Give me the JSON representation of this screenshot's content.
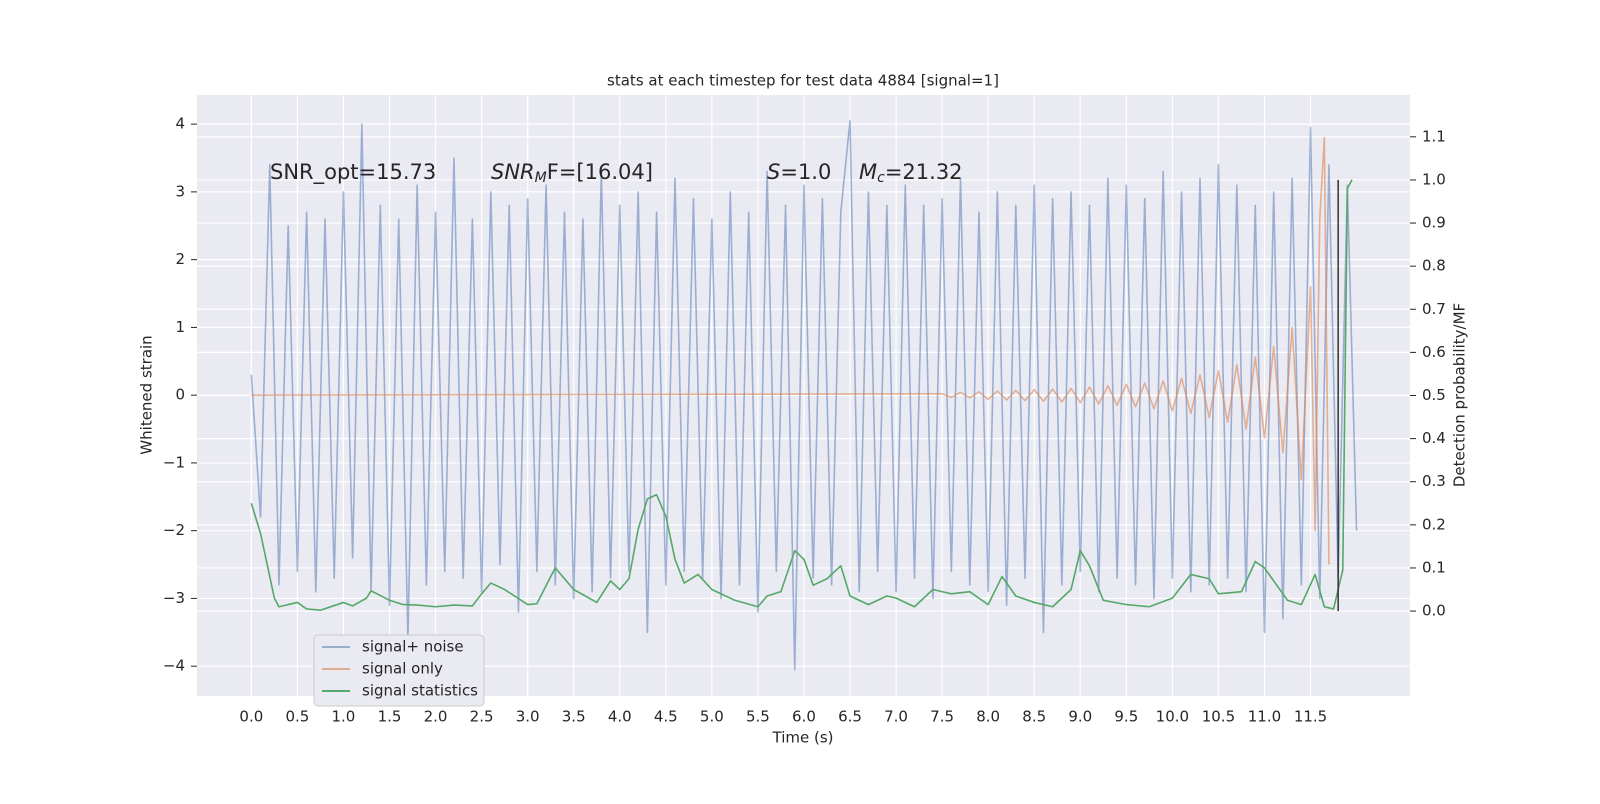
{
  "chart_data": {
    "type": "line",
    "title": "stats at each timestep for test data 4884 [signal=1]",
    "xlabel": "Time (s)",
    "ylabel": "Whitened strain",
    "y2label": "Detection probability/MF",
    "xlim": [
      -0.59,
      12.58
    ],
    "ylim": [
      -4.44,
      4.43
    ],
    "y2lim": [
      -0.197,
      1.197
    ],
    "xticks": [
      {
        "value": 0,
        "label": "0.0"
      },
      0.5,
      {
        "value": 1,
        "label": "1.0"
      },
      1.5,
      {
        "value": 2,
        "label": "2.0"
      },
      2.5,
      {
        "value": 3,
        "label": "3.0"
      },
      3.5,
      {
        "value": 4,
        "label": "4.0"
      },
      4.5,
      {
        "value": 5,
        "label": "5.0"
      },
      5.5,
      {
        "value": 6,
        "label": "6.0"
      },
      6.5,
      {
        "value": 7,
        "label": "7.0"
      },
      7.5,
      {
        "value": 8,
        "label": "8.0"
      },
      8.5,
      {
        "value": 9,
        "label": "9.0"
      },
      9.5,
      {
        "value": 10,
        "label": "10.0"
      },
      10.5,
      {
        "value": 11,
        "label": "11.0"
      },
      11.5
    ],
    "yticks": [
      {
        "value": -4,
        "label": "−4"
      },
      {
        "value": -3,
        "label": "−3"
      },
      {
        "value": -2,
        "label": "−2"
      },
      {
        "value": -1,
        "label": "−1"
      },
      0,
      1,
      2,
      3,
      4
    ],
    "y2ticks": [
      {
        "value": 0,
        "label": "0.0"
      },
      0.1,
      0.2,
      0.3,
      0.4,
      0.5,
      0.6,
      0.7,
      0.8,
      0.9,
      {
        "value": 1,
        "label": "1.0"
      },
      1.1
    ],
    "grid": true,
    "legend_position": "lower left",
    "annotations": [
      {
        "text": "SNR_opt=15.73"
      },
      {
        "italic": "SNR",
        "sub": "M",
        "tail": "F=[16.04]"
      },
      {
        "italic": "S",
        "tail": "=1.0"
      },
      {
        "italic": "M",
        "sub": "c",
        "tail": "=21.32"
      }
    ],
    "vline": {
      "x": 11.8,
      "y2": [
        0,
        1
      ],
      "color": "#333333"
    },
    "series": [
      {
        "name": "signal+ noise",
        "color": "#4c72b0",
        "opacity": 0.5,
        "x": [
          0,
          0.1,
          0.2,
          0.3,
          0.4,
          0.5,
          0.6,
          0.7,
          0.8,
          0.9,
          1,
          1.1,
          1.2,
          1.3,
          1.4,
          1.5,
          1.6,
          1.7,
          1.8,
          1.9,
          2,
          2.1,
          2.2,
          2.3,
          2.4,
          2.5,
          2.6,
          2.7,
          2.8,
          2.9,
          3,
          3.1,
          3.2,
          3.3,
          3.4,
          3.5,
          3.6,
          3.7,
          3.8,
          3.9,
          4,
          4.1,
          4.2,
          4.3,
          4.4,
          4.5,
          4.6,
          4.7,
          4.8,
          4.9,
          5,
          5.1,
          5.2,
          5.3,
          5.4,
          5.5,
          5.6,
          5.7,
          5.8,
          5.9,
          6,
          6.1,
          6.2,
          6.3,
          6.4,
          6.5,
          6.6,
          6.7,
          6.8,
          6.9,
          7,
          7.1,
          7.2,
          7.3,
          7.4,
          7.5,
          7.6,
          7.7,
          7.8,
          7.9,
          8,
          8.1,
          8.2,
          8.3,
          8.4,
          8.5,
          8.6,
          8.7,
          8.8,
          8.9,
          9,
          9.1,
          9.2,
          9.3,
          9.4,
          9.5,
          9.6,
          9.7,
          9.8,
          9.9,
          10,
          10.1,
          10.2,
          10.3,
          10.4,
          10.5,
          10.6,
          10.7,
          10.8,
          10.9,
          11,
          11.1,
          11.2,
          11.3,
          11.4,
          11.5,
          11.6,
          11.7,
          11.8,
          11.9,
          12
        ],
        "values": [
          0.3,
          -1.8,
          3.4,
          -2.8,
          2.5,
          -2.6,
          2.7,
          -2.9,
          2.6,
          -2.7,
          3.0,
          -2.4,
          4.0,
          -2.9,
          2.8,
          -3.1,
          2.6,
          -3.6,
          3.1,
          -2.8,
          2.7,
          -2.6,
          3.5,
          -2.7,
          2.6,
          -2.9,
          3.0,
          -2.5,
          2.8,
          -3.2,
          2.9,
          -2.6,
          3.1,
          -2.8,
          2.7,
          -3.0,
          2.6,
          -2.9,
          3.3,
          -2.7,
          2.8,
          -2.6,
          3.0,
          -3.5,
          2.7,
          -2.8,
          3.2,
          -2.6,
          2.9,
          -2.7,
          2.6,
          -3.0,
          3.0,
          -2.8,
          2.7,
          -3.2,
          3.3,
          -2.6,
          2.8,
          -4.05,
          3.1,
          -2.7,
          2.9,
          -2.8,
          2.7,
          4.05,
          -2.9,
          3.0,
          -2.6,
          2.8,
          -2.9,
          3.1,
          -2.7,
          2.8,
          -3.0,
          2.9,
          -2.6,
          3.2,
          -2.8,
          2.7,
          -2.9,
          3.0,
          -3.1,
          2.8,
          -2.7,
          3.1,
          -3.5,
          2.9,
          -2.8,
          3.0,
          -2.6,
          2.8,
          -2.9,
          3.2,
          -2.7,
          3.1,
          -2.8,
          2.9,
          -3.0,
          3.3,
          -2.7,
          3.0,
          -2.9,
          3.2,
          -2.8,
          3.4,
          -2.7,
          3.1,
          -2.9,
          2.8,
          -3.5,
          3.0,
          -3.3,
          3.2,
          -2.8,
          3.95,
          -3.0,
          3.4,
          -2.7,
          3.1,
          -2.0
        ]
      },
      {
        "name": "signal only",
        "color": "#dd8452",
        "opacity": 0.6,
        "x": [
          0,
          7.5,
          7.6,
          7.7,
          7.8,
          7.9,
          8,
          8.1,
          8.2,
          8.3,
          8.4,
          8.5,
          8.6,
          8.7,
          8.8,
          8.9,
          9,
          9.1,
          9.2,
          9.3,
          9.4,
          9.5,
          9.6,
          9.7,
          9.8,
          9.9,
          10,
          10.1,
          10.2,
          10.3,
          10.4,
          10.5,
          10.6,
          10.7,
          10.8,
          10.9,
          11,
          11.1,
          11.2,
          11.3,
          11.4,
          11.5,
          11.55,
          11.6,
          11.65,
          11.7
        ],
        "values": [
          0,
          0.02,
          -0.03,
          0.04,
          -0.04,
          0.05,
          -0.06,
          0.06,
          -0.07,
          0.07,
          -0.08,
          0.08,
          -0.09,
          0.09,
          -0.1,
          0.1,
          -0.11,
          0.12,
          -0.13,
          0.14,
          -0.15,
          0.16,
          -0.17,
          0.18,
          -0.2,
          0.21,
          -0.23,
          0.25,
          -0.27,
          0.3,
          -0.33,
          0.36,
          -0.4,
          0.45,
          -0.5,
          0.56,
          -0.63,
          0.72,
          -0.85,
          1.0,
          -1.25,
          1.6,
          -2.0,
          2.6,
          3.8,
          -2.5
        ]
      },
      {
        "name": "signal statistics",
        "color": "#55a868",
        "opacity": 1,
        "axis": "y2",
        "x": [
          0,
          0.1,
          0.25,
          0.3,
          0.5,
          0.6,
          0.75,
          1,
          1.1,
          1.25,
          1.3,
          1.5,
          1.65,
          1.8,
          2,
          2.2,
          2.4,
          2.5,
          2.6,
          2.75,
          3,
          3.1,
          3.25,
          3.3,
          3.5,
          3.75,
          3.9,
          4,
          4.1,
          4.2,
          4.3,
          4.4,
          4.5,
          4.6,
          4.7,
          4.85,
          5,
          5.25,
          5.5,
          5.6,
          5.75,
          5.9,
          6,
          6.1,
          6.25,
          6.4,
          6.5,
          6.7,
          6.9,
          7,
          7.2,
          7.4,
          7.6,
          7.8,
          8,
          8.15,
          8.3,
          8.5,
          8.7,
          8.9,
          9,
          9.1,
          9.25,
          9.5,
          9.75,
          10,
          10.2,
          10.4,
          10.5,
          10.75,
          10.9,
          11,
          11.25,
          11.4,
          11.55,
          11.65,
          11.75,
          11.85,
          11.9,
          11.95
        ],
        "values": [
          0.25,
          0.18,
          0.03,
          0.01,
          0.02,
          0.005,
          0.002,
          0.02,
          0.012,
          0.03,
          0.047,
          0.025,
          0.015,
          0.014,
          0.01,
          0.014,
          0.012,
          0.04,
          0.065,
          0.05,
          0.015,
          0.017,
          0.08,
          0.1,
          0.05,
          0.02,
          0.07,
          0.05,
          0.075,
          0.19,
          0.26,
          0.27,
          0.22,
          0.12,
          0.065,
          0.085,
          0.05,
          0.025,
          0.01,
          0.035,
          0.045,
          0.14,
          0.12,
          0.06,
          0.075,
          0.105,
          0.035,
          0.015,
          0.035,
          0.03,
          0.01,
          0.05,
          0.04,
          0.045,
          0.015,
          0.08,
          0.035,
          0.02,
          0.01,
          0.05,
          0.14,
          0.105,
          0.025,
          0.015,
          0.01,
          0.03,
          0.085,
          0.075,
          0.04,
          0.045,
          0.115,
          0.1,
          0.025,
          0.015,
          0.085,
          0.01,
          0.005,
          0.095,
          0.98,
          1.0
        ]
      }
    ]
  }
}
